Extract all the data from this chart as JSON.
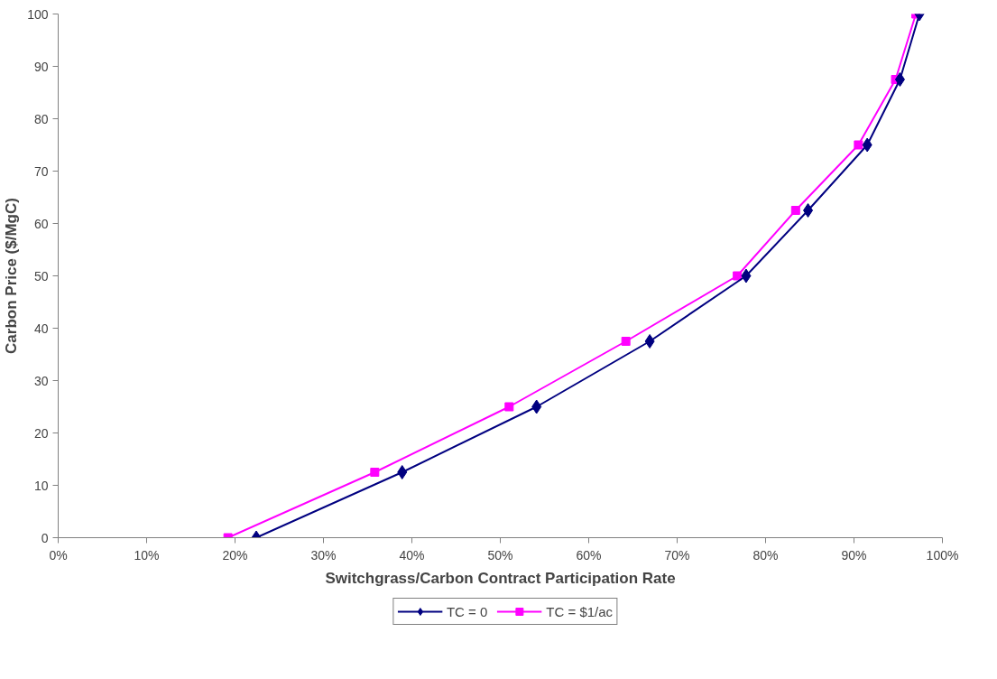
{
  "chart_data": {
    "type": "line",
    "xlabel": "Switchgrass/Carbon Contract Participation Rate",
    "ylabel": "Carbon Price ($/MgC)",
    "series": [
      {
        "name": "TC = 0",
        "color": "#000080",
        "marker": "diamond",
        "x": [
          22.4,
          38.9,
          54.1,
          66.9,
          77.8,
          84.8,
          91.5,
          95.2,
          97.4
        ],
        "values": [
          0,
          12.5,
          25,
          37.5,
          50,
          62.5,
          75,
          87.5,
          100
        ]
      },
      {
        "name": "TC = $1/ac",
        "color": "#ff00ff",
        "marker": "square",
        "x": [
          19.2,
          35.8,
          51.0,
          64.2,
          76.8,
          83.4,
          90.5,
          94.7,
          97.0
        ],
        "values": [
          0,
          12.5,
          25,
          37.5,
          50,
          62.5,
          75,
          87.5,
          100
        ]
      }
    ],
    "xlim": [
      0,
      100
    ],
    "ylim": [
      0,
      100
    ],
    "xticks": [
      {
        "value": 0,
        "label": "0%"
      },
      {
        "value": 10,
        "label": "10%"
      },
      {
        "value": 20,
        "label": "20%"
      },
      {
        "value": 30,
        "label": "30%"
      },
      {
        "value": 40,
        "label": "40%"
      },
      {
        "value": 50,
        "label": "50%"
      },
      {
        "value": 60,
        "label": "60%"
      },
      {
        "value": 70,
        "label": "70%"
      },
      {
        "value": 80,
        "label": "80%"
      },
      {
        "value": 90,
        "label": "90%"
      },
      {
        "value": 100,
        "label": "100%"
      }
    ],
    "yticks": [
      0,
      10,
      20,
      30,
      40,
      50,
      60,
      70,
      80,
      90,
      100
    ],
    "grid": false,
    "legend": "bottom",
    "line_style": "solid"
  }
}
